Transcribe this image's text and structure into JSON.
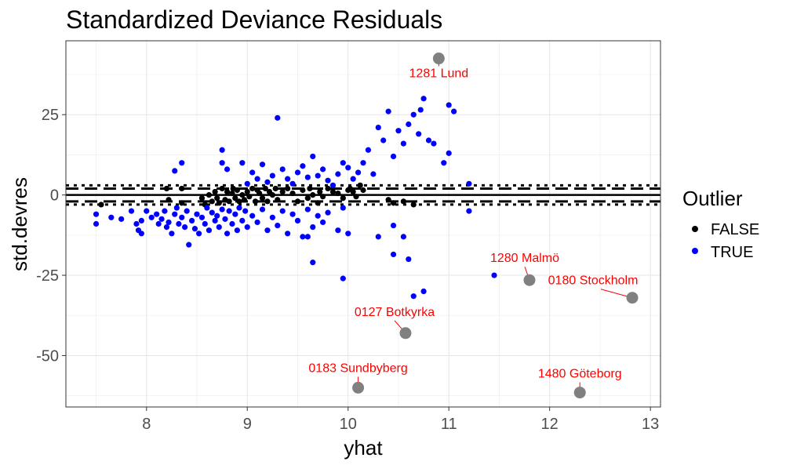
{
  "chart_data": {
    "type": "scatter",
    "title": "Standardized Deviance Residuals",
    "xlabel": "yhat",
    "ylabel": "std.devres",
    "xlim": [
      7.2,
      13.1
    ],
    "ylim": [
      -66,
      48
    ],
    "x_ticks": [
      8,
      9,
      10,
      11,
      12,
      13
    ],
    "y_ticks": [
      -50,
      -25,
      0,
      25
    ],
    "x_tick_labels": [
      "8",
      "9",
      "10",
      "11",
      "12",
      "13"
    ],
    "y_tick_labels": [
      "-50",
      "-25",
      "0",
      "25"
    ],
    "grid": true,
    "legend": {
      "title": "Outlier",
      "position": "right",
      "entries": [
        "FALSE",
        "TRUE"
      ]
    },
    "colors": {
      "FALSE": "#000000",
      "TRUE": "#0000ff",
      "highlight": "#808080",
      "annotation": "#ff0000"
    },
    "hlines": [
      {
        "y": 0,
        "style": "solid"
      },
      {
        "y": 2,
        "style": "dashed"
      },
      {
        "y": -2,
        "style": "dashed"
      },
      {
        "y": 3,
        "style": "dotted"
      },
      {
        "y": -3,
        "style": "dotted"
      }
    ],
    "series": [
      {
        "name": "FALSE",
        "points": [
          [
            7.55,
            -3.0
          ],
          [
            8.2,
            2.0
          ],
          [
            8.22,
            -1.5
          ],
          [
            8.35,
            2.0
          ],
          [
            8.35,
            -2.5
          ],
          [
            8.55,
            -1.0
          ],
          [
            8.58,
            -3.0
          ],
          [
            8.62,
            0.0
          ],
          [
            8.65,
            -2.0
          ],
          [
            8.68,
            1.0
          ],
          [
            8.7,
            -1.0
          ],
          [
            8.72,
            -2.5
          ],
          [
            8.75,
            2.0
          ],
          [
            8.78,
            -1.5
          ],
          [
            8.8,
            1.0
          ],
          [
            8.82,
            -2.0
          ],
          [
            8.85,
            0.5
          ],
          [
            8.86,
            2.0
          ],
          [
            8.88,
            -1.0
          ],
          [
            8.9,
            1.5
          ],
          [
            8.92,
            -2.0
          ],
          [
            8.95,
            0.0
          ],
          [
            8.97,
            -1.5
          ],
          [
            9.0,
            1.0
          ],
          [
            9.02,
            -0.5
          ],
          [
            9.05,
            2.0
          ],
          [
            9.08,
            -2.0
          ],
          [
            9.1,
            1.5
          ],
          [
            9.12,
            0.5
          ],
          [
            9.15,
            -1.0
          ],
          [
            9.18,
            2.0
          ],
          [
            9.2,
            -2.0
          ],
          [
            9.22,
            1.0
          ],
          [
            9.25,
            0.0
          ],
          [
            9.28,
            2.0
          ],
          [
            9.3,
            -1.5
          ],
          [
            9.35,
            1.0
          ],
          [
            9.4,
            2.0
          ],
          [
            9.45,
            0.5
          ],
          [
            9.5,
            -2.0
          ],
          [
            9.55,
            1.5
          ],
          [
            9.6,
            -1.0
          ],
          [
            9.62,
            2.0
          ],
          [
            9.65,
            0.0
          ],
          [
            9.7,
            -2.5
          ],
          [
            9.72,
            1.0
          ],
          [
            9.75,
            -0.5
          ],
          [
            9.8,
            2.0
          ],
          [
            9.85,
            1.0
          ],
          [
            9.9,
            0.5
          ],
          [
            9.95,
            -1.0
          ],
          [
            10.0,
            1.5
          ],
          [
            10.02,
            2.0
          ],
          [
            10.05,
            1.0
          ],
          [
            10.08,
            -0.5
          ],
          [
            10.12,
            3.0
          ],
          [
            10.15,
            1.5
          ],
          [
            10.4,
            -1.5
          ],
          [
            10.45,
            -2.5
          ],
          [
            10.55,
            -2.0
          ],
          [
            10.65,
            -3.0
          ]
        ]
      },
      {
        "name": "TRUE",
        "points": [
          [
            7.5,
            -6.0
          ],
          [
            7.5,
            -9.0
          ],
          [
            7.65,
            -7.0
          ],
          [
            7.75,
            -7.5
          ],
          [
            7.85,
            -5.0
          ],
          [
            7.9,
            -9.0
          ],
          [
            7.92,
            -11.0
          ],
          [
            7.95,
            -8.0
          ],
          [
            7.95,
            -12.0
          ],
          [
            8.0,
            -5.0
          ],
          [
            8.05,
            -7.0
          ],
          [
            8.1,
            -6.0
          ],
          [
            8.12,
            -9.0
          ],
          [
            8.15,
            -7.5
          ],
          [
            8.18,
            -5.0
          ],
          [
            8.2,
            -10.0
          ],
          [
            8.22,
            -8.5
          ],
          [
            8.25,
            -12.0
          ],
          [
            8.28,
            -6.0
          ],
          [
            8.3,
            -4.0
          ],
          [
            8.32,
            -9.0
          ],
          [
            8.35,
            -7.0
          ],
          [
            8.38,
            -10.0
          ],
          [
            8.4,
            -5.0
          ],
          [
            8.42,
            -15.5
          ],
          [
            8.45,
            -8.0
          ],
          [
            8.48,
            -10.5
          ],
          [
            8.5,
            -6.0
          ],
          [
            8.52,
            -12.0
          ],
          [
            8.55,
            -7.0
          ],
          [
            8.58,
            -9.0
          ],
          [
            8.6,
            -4.0
          ],
          [
            8.62,
            -11.0
          ],
          [
            8.65,
            -5.5
          ],
          [
            8.68,
            -8.0
          ],
          [
            8.7,
            -6.5
          ],
          [
            8.72,
            -10.0
          ],
          [
            8.75,
            -4.5
          ],
          [
            8.78,
            -7.5
          ],
          [
            8.8,
            -12.0
          ],
          [
            8.82,
            -5.0
          ],
          [
            8.85,
            -9.0
          ],
          [
            8.88,
            -6.0
          ],
          [
            8.9,
            -11.0
          ],
          [
            8.92,
            -4.0
          ],
          [
            8.95,
            -8.0
          ],
          [
            8.98,
            -5.0
          ],
          [
            9.0,
            -10.0
          ],
          [
            9.05,
            -6.5
          ],
          [
            9.1,
            -8.5
          ],
          [
            9.15,
            -4.5
          ],
          [
            9.2,
            -11.0
          ],
          [
            9.25,
            -7.0
          ],
          [
            9.3,
            -9.5
          ],
          [
            9.35,
            -5.0
          ],
          [
            9.4,
            -12.0
          ],
          [
            9.45,
            -6.0
          ],
          [
            9.5,
            -8.0
          ],
          [
            9.55,
            -13.0
          ],
          [
            9.6,
            -4.5
          ],
          [
            9.65,
            -10.0
          ],
          [
            9.7,
            -6.5
          ],
          [
            9.75,
            -8.5
          ],
          [
            9.8,
            -5.5
          ],
          [
            9.9,
            -11.0
          ],
          [
            9.95,
            -4.0
          ],
          [
            8.35,
            10.0
          ],
          [
            8.28,
            7.5
          ],
          [
            8.75,
            14.0
          ],
          [
            8.75,
            10.0
          ],
          [
            8.8,
            8.0
          ],
          [
            8.95,
            10.0
          ],
          [
            9.0,
            3.5
          ],
          [
            9.05,
            7.0
          ],
          [
            9.1,
            5.0
          ],
          [
            9.15,
            9.5
          ],
          [
            9.2,
            4.0
          ],
          [
            9.25,
            6.0
          ],
          [
            9.3,
            24.0
          ],
          [
            9.35,
            8.0
          ],
          [
            9.4,
            5.0
          ],
          [
            9.45,
            3.5
          ],
          [
            9.5,
            7.0
          ],
          [
            9.55,
            9.0
          ],
          [
            9.6,
            5.5
          ],
          [
            9.65,
            12.0
          ],
          [
            9.7,
            6.0
          ],
          [
            9.75,
            8.0
          ],
          [
            9.8,
            4.5
          ],
          [
            9.85,
            3.0
          ],
          [
            9.9,
            6.5
          ],
          [
            9.95,
            10.0
          ],
          [
            10.0,
            8.5
          ],
          [
            10.05,
            5.0
          ],
          [
            10.1,
            7.0
          ],
          [
            10.15,
            10.0
          ],
          [
            10.2,
            14.0
          ],
          [
            10.25,
            6.5
          ],
          [
            10.3,
            21.0
          ],
          [
            10.35,
            17.0
          ],
          [
            10.4,
            26.0
          ],
          [
            10.45,
            12.0
          ],
          [
            10.5,
            20.0
          ],
          [
            10.55,
            16.0
          ],
          [
            10.6,
            22.0
          ],
          [
            10.65,
            25.0
          ],
          [
            10.7,
            19.0
          ],
          [
            10.72,
            26.5
          ],
          [
            10.75,
            30.0
          ],
          [
            10.8,
            17.0
          ],
          [
            10.85,
            16.0
          ],
          [
            11.0,
            28.0
          ],
          [
            11.05,
            26.0
          ],
          [
            11.0,
            13.0
          ],
          [
            10.95,
            10.0
          ],
          [
            11.2,
            3.5
          ],
          [
            9.6,
            -13.0
          ],
          [
            9.65,
            -21.0
          ],
          [
            9.95,
            -26.0
          ],
          [
            10.0,
            -12.0
          ],
          [
            10.3,
            -13.0
          ],
          [
            10.45,
            -9.5
          ],
          [
            10.45,
            -18.5
          ],
          [
            10.55,
            -13.0
          ],
          [
            10.6,
            -20.0
          ],
          [
            10.65,
            -31.5
          ],
          [
            10.75,
            -30.0
          ],
          [
            11.2,
            -5.0
          ],
          [
            11.45,
            -25.0
          ]
        ]
      }
    ],
    "annotations": [
      {
        "label": "1281 Lund",
        "x": 10.9,
        "y": 42.5
      },
      {
        "label": "1280 Malmö",
        "x": 11.8,
        "y": -26.5
      },
      {
        "label": "0180 Stockholm",
        "x": 12.82,
        "y": -32.0
      },
      {
        "label": "0127 Botkyrka",
        "x": 10.57,
        "y": -43.0
      },
      {
        "label": "0183 Sundbyberg",
        "x": 10.1,
        "y": -60.0
      },
      {
        "label": "1480 Göteborg",
        "x": 12.3,
        "y": -61.5
      }
    ]
  }
}
